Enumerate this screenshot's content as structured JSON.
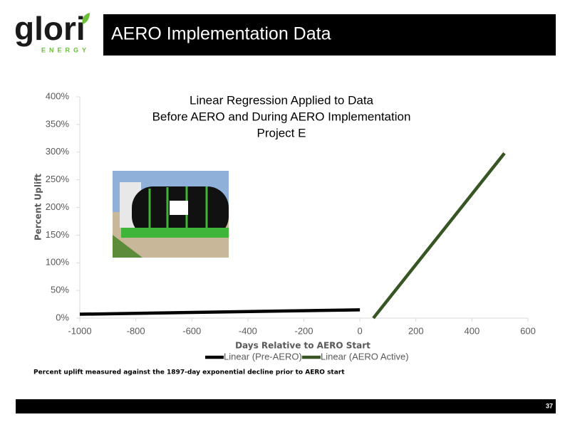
{
  "slide": {
    "logo": {
      "name": "glori",
      "tagline": "ENERGY"
    },
    "title": "AERO Implementation Data",
    "footnote": "Percent uplift measured against the 1897-day exponential decline prior to AERO start",
    "page_number": "37"
  },
  "chart_data": {
    "type": "line",
    "title": [
      "Linear Regression Applied to Data",
      "Before AERO and During AERO Implementation",
      "Project E"
    ],
    "x_label": "Days Relative to AERO Start",
    "y_label": "Percent Uplift",
    "series": [
      {
        "name": "Linear (Pre-AERO)",
        "color": "#000000",
        "x": [
          -1000,
          0
        ],
        "values": [
          7,
          15
        ]
      },
      {
        "name": "Linear (AERO Active)",
        "color": "#375623",
        "x": [
          48,
          516
        ],
        "values": [
          0,
          298
        ]
      }
    ],
    "xlim": [
      -1000,
      600
    ],
    "xticks": [
      -1000,
      -800,
      -600,
      -400,
      -200,
      0,
      200,
      400,
      600
    ],
    "ylim": [
      0,
      400
    ],
    "yticks": [
      {
        "value": 0,
        "label": "0%"
      },
      {
        "value": 50,
        "label": "50%"
      },
      {
        "value": 100,
        "label": "100%"
      },
      {
        "value": 150,
        "label": "150%"
      },
      {
        "value": 200,
        "label": "200%"
      },
      {
        "value": 250,
        "label": "250%"
      },
      {
        "value": 300,
        "label": "300%"
      },
      {
        "value": 350,
        "label": "350%"
      },
      {
        "value": 400,
        "label": "400%"
      }
    ],
    "legend": "bottom",
    "grid": false
  }
}
